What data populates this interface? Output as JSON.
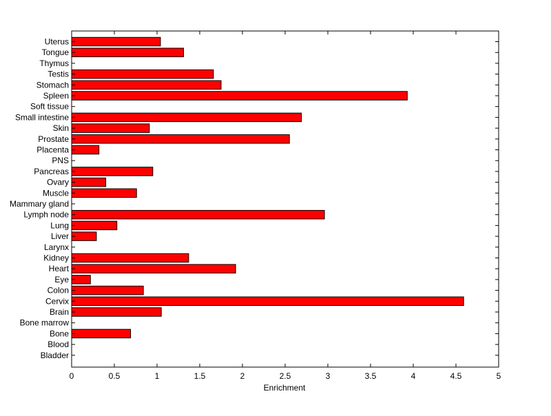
{
  "chart_data": {
    "type": "bar",
    "orientation": "horizontal",
    "title": "",
    "xlabel": "Enrichment",
    "ylabel": "",
    "xlim": [
      0,
      5
    ],
    "x_ticks": [
      0,
      0.5,
      1,
      1.5,
      2,
      2.5,
      3,
      3.5,
      4,
      4.5,
      5
    ],
    "x_tick_labels": [
      "0",
      "0.5",
      "1",
      "1.5",
      "2",
      "2.5",
      "3",
      "3.5",
      "4",
      "4.5",
      "5"
    ],
    "grid": false,
    "bar_color": "#ff0000",
    "edge_color": "#000000",
    "categories": [
      "Uterus",
      "Tongue",
      "Thymus",
      "Testis",
      "Stomach",
      "Spleen",
      "Soft tissue",
      "Small intestine",
      "Skin",
      "Prostate",
      "Placenta",
      "PNS",
      "Pancreas",
      "Ovary",
      "Muscle",
      "Mammary gland",
      "Lymph node",
      "Lung",
      "Liver",
      "Larynx",
      "Kidney",
      "Heart",
      "Eye",
      "Colon",
      "Cervix",
      "Brain",
      "Bone marrow",
      "Bone",
      "Blood",
      "Bladder"
    ],
    "values": [
      1.04,
      1.31,
      0,
      1.66,
      1.75,
      3.93,
      0,
      2.69,
      0.91,
      2.55,
      0.32,
      0,
      0.95,
      0.4,
      0.76,
      0,
      2.96,
      0.53,
      0.29,
      0,
      1.37,
      1.92,
      0.22,
      0.84,
      4.59,
      1.05,
      0,
      0.69,
      0,
      0
    ]
  }
}
